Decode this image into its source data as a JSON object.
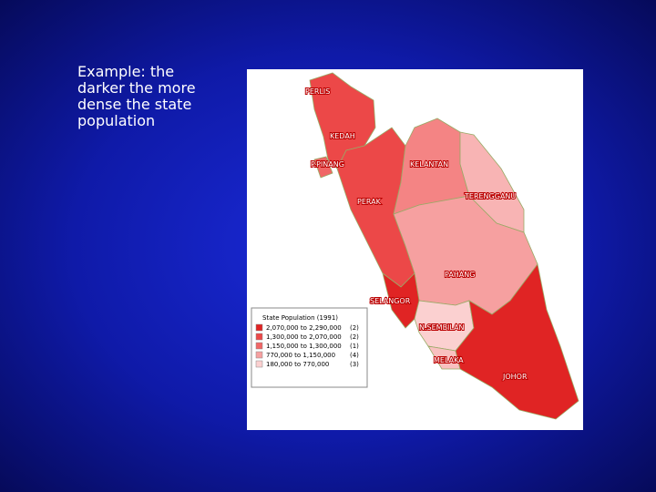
{
  "caption": "Example: the darker the more dense the state population",
  "map": {
    "states": [
      "PERLIS",
      "KEDAH",
      "P.PINANG",
      "KELANTAN",
      "TERENGGANU",
      "PERAK",
      "PAHANG",
      "SELANGOR",
      "N.SEMBILAN",
      "MELAKA",
      "JOHOR"
    ],
    "legend": {
      "title": "State Population (1991)",
      "rows": [
        {
          "range": "2,070,000 to 2,290,000",
          "count": "(2)"
        },
        {
          "range": "1,300,000 to 2,070,000",
          "count": "(2)"
        },
        {
          "range": "1,150,000 to 1,300,000",
          "count": "(1)"
        },
        {
          "range": "770,000 to 1,150,000",
          "count": "(4)"
        },
        {
          "range": "180,000 to 770,000",
          "count": "(3)"
        }
      ]
    }
  }
}
